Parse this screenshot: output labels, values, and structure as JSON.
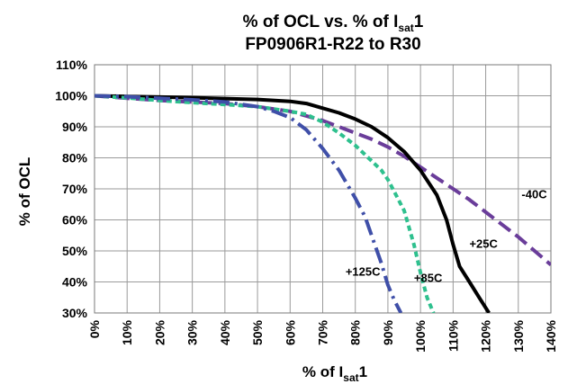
{
  "chart_data": {
    "type": "line",
    "title": {
      "line1_main": "% of OCL vs. % of I",
      "line1_sub": "sat",
      "line1_end": "1",
      "line2": "FP0906R1-R22 to R30"
    },
    "xlabel": {
      "main": "% of I",
      "sub": "sat",
      "end": "1"
    },
    "ylabel": "% of OCL",
    "xlim": [
      0,
      140
    ],
    "ylim": [
      30,
      110
    ],
    "x_ticks": [
      0,
      10,
      20,
      30,
      40,
      50,
      60,
      70,
      80,
      90,
      100,
      110,
      120,
      130,
      140
    ],
    "x_tick_labels": [
      "0%",
      "10%",
      "20%",
      "30%",
      "40%",
      "50%",
      "60%",
      "70%",
      "80%",
      "90%",
      "100%",
      "110%",
      "120%",
      "130%",
      "140%"
    ],
    "y_ticks": [
      30,
      40,
      50,
      60,
      70,
      80,
      90,
      100,
      110
    ],
    "y_tick_labels": [
      "30%",
      "40%",
      "50%",
      "60%",
      "70%",
      "80%",
      "90%",
      "100%",
      "110%"
    ],
    "grid": true,
    "series": [
      {
        "name": "-40C",
        "color": "#6a3d9a",
        "dash": "long-dash",
        "label_at": [
          131,
          67
        ],
        "x": [
          0,
          10,
          20,
          30,
          40,
          50,
          60,
          65,
          70,
          75,
          80,
          85,
          90,
          95,
          100,
          105,
          110,
          115,
          120,
          125,
          130,
          135,
          140
        ],
        "y": [
          100,
          99.2,
          98.5,
          98,
          97.5,
          96.5,
          95,
          93.5,
          92,
          90,
          88,
          86,
          83.5,
          80.5,
          77,
          73.5,
          70,
          66.5,
          62.5,
          58.5,
          54.5,
          50,
          45.5
        ]
      },
      {
        "name": "+25C",
        "color": "#000000",
        "dash": "solid",
        "label_at": [
          115,
          51
        ],
        "x": [
          0,
          10,
          20,
          30,
          40,
          50,
          60,
          65,
          70,
          75,
          80,
          85,
          90,
          95,
          100,
          105,
          108,
          110,
          112,
          115,
          118,
          121
        ],
        "y": [
          100,
          99.8,
          99.6,
          99.4,
          99.1,
          98.8,
          98.2,
          97.5,
          96,
          94.5,
          92.5,
          90,
          86.5,
          82,
          76,
          68,
          60,
          52,
          45,
          40,
          35,
          30
        ]
      },
      {
        "name": "+85C",
        "color": "#2ec08e",
        "dash": "short-dash",
        "label_at": [
          98,
          40
        ],
        "x": [
          0,
          10,
          20,
          30,
          40,
          50,
          60,
          65,
          70,
          75,
          80,
          85,
          88,
          90,
          92,
          95,
          98,
          100,
          102,
          104
        ],
        "y": [
          100,
          99.3,
          98.5,
          97.8,
          97.2,
          96.5,
          95,
          94,
          91.5,
          88,
          84,
          79,
          76,
          73,
          69,
          63,
          52,
          43,
          35,
          30
        ]
      },
      {
        "name": "+125C",
        "color": "#3f4fa8",
        "dash": "dash-dot",
        "label_at": [
          77,
          42
        ],
        "x": [
          0,
          10,
          20,
          30,
          40,
          50,
          55,
          60,
          65,
          70,
          75,
          80,
          83,
          85,
          88,
          90,
          92,
          94
        ],
        "y": [
          100,
          99.7,
          99.2,
          98.7,
          98,
          96.5,
          95,
          93,
          89,
          83,
          76,
          67,
          61,
          55,
          46,
          39,
          34,
          30
        ]
      }
    ]
  }
}
